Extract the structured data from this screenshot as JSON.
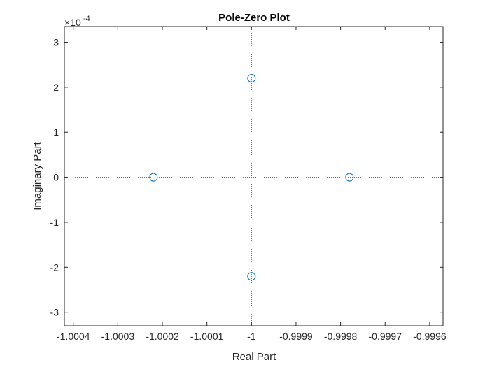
{
  "chart_data": {
    "type": "scatter",
    "title": "Pole-Zero Plot",
    "xlabel": "Real Part",
    "ylabel": "Imaginary Part",
    "y_exponent_label": "×10",
    "y_exponent_power": "-4",
    "xlim": [
      -1.00042,
      -0.99957
    ],
    "ylim": [
      -0.00033,
      0.000335
    ],
    "x_ticks": [
      -1.0004,
      -1.0003,
      -1.0002,
      -1.0001,
      -1.0,
      -0.9999,
      -0.9998,
      -0.9997,
      -0.9996
    ],
    "x_tick_labels": [
      "-1.0004",
      "-1.0003",
      "-1.0002",
      "-1.0001",
      "-1",
      "-0.9999",
      "-0.9998",
      "-0.9997",
      "-0.9996"
    ],
    "y_ticks": [
      -0.0003,
      -0.0002,
      -0.0001,
      0,
      0.0001,
      0.0002,
      0.0003
    ],
    "y_tick_labels": [
      "-3",
      "-2",
      "-1",
      "0",
      "1",
      "2",
      "3"
    ],
    "grid": false,
    "reference_lines": {
      "x": -1.0,
      "y": 0
    },
    "series": [
      {
        "marker": "circle",
        "color": "#0072BD",
        "points": [
          {
            "x": -1.00022,
            "y": 0
          },
          {
            "x": -0.99978,
            "y": 0
          },
          {
            "x": -1.0,
            "y": 0.00022
          },
          {
            "x": -1.0,
            "y": -0.00022
          }
        ]
      }
    ],
    "axis_color": "#262626",
    "reference_line_color": "#0072BD"
  }
}
